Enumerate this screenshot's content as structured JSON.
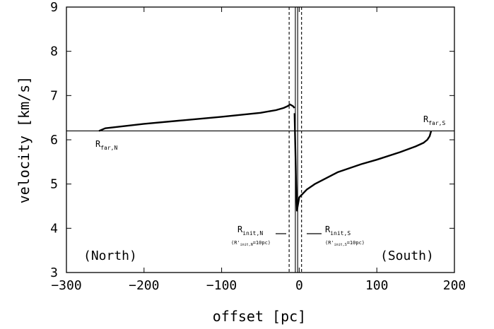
{
  "chart_data": {
    "type": "line",
    "xlabel": "offset [pc]",
    "ylabel": "velocity [km/s]",
    "xlim": [
      -300,
      200
    ],
    "ylim": [
      3,
      9
    ],
    "xticks": [
      -300,
      -200,
      -100,
      0,
      100,
      200
    ],
    "xtick_labels": [
      "−300",
      "−200",
      "−100",
      "0",
      "100",
      "200"
    ],
    "yticks": [
      3,
      4,
      5,
      6,
      7,
      8,
      9
    ],
    "ytick_labels": [
      "3",
      "4",
      "5",
      "6",
      "7",
      "8",
      "9"
    ],
    "grid": false,
    "hline": {
      "y": 6.2
    },
    "vlines_solid": [
      -5,
      -2
    ],
    "vlines_dashed": [
      -13,
      3
    ],
    "region_labels": {
      "north": "(North)",
      "south": "(South)"
    },
    "series": [
      {
        "x": [
          -258,
          -250,
          -200,
          -150,
          -100,
          -50,
          -30,
          -20,
          -15,
          -12,
          -10,
          -8,
          -6
        ],
        "y": [
          6.2,
          6.26,
          6.36,
          6.44,
          6.52,
          6.61,
          6.67,
          6.72,
          6.76,
          6.8,
          6.78,
          6.76,
          6.72
        ]
      },
      {
        "x": [
          -6,
          -5,
          -4,
          -3,
          -2,
          0,
          10,
          20,
          50,
          80,
          100,
          130,
          150,
          160,
          165,
          168,
          170
        ],
        "y": [
          6.6,
          5.8,
          5.0,
          4.4,
          4.5,
          4.7,
          4.88,
          5.0,
          5.27,
          5.45,
          5.55,
          5.72,
          5.85,
          5.93,
          6.0,
          6.08,
          6.2
        ]
      }
    ],
    "annotations": {
      "r_far_n": {
        "base": "R",
        "sub": "far,N"
      },
      "r_far_s": {
        "base": "R",
        "sub": "far,S"
      },
      "r_init_n": {
        "base": "R",
        "sub": "init,N"
      },
      "r_init_s": {
        "base": "R",
        "sub": "init,S"
      },
      "note_n": {
        "open": "(R'",
        "sub": "init,N",
        "close": "=10pc)"
      },
      "note_s": {
        "open": "(R'",
        "sub": "init,S",
        "close": "=10pc)"
      }
    }
  }
}
